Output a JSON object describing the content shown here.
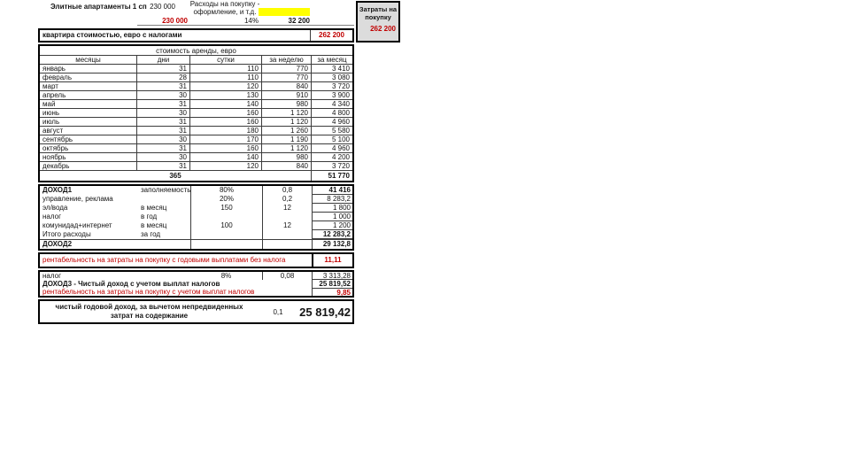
{
  "header": {
    "title": "Элитные апартаменты 1 сп",
    "price": "230 000",
    "expenses_label": "Расходы на покупку - оформление, и т.д.",
    "price_red": "230 000",
    "fees_percent": "14%",
    "fees_amount": "32 200"
  },
  "costs_box": {
    "label": "Затраты на покупку",
    "value": "262 200"
  },
  "apartment_row": {
    "label": "квартира стоимостью, евро с налогами",
    "value": "262 200"
  },
  "rent_table": {
    "title": "стоимость аренды, евро",
    "columns": [
      "месяцы",
      "дни",
      "сутки",
      "за неделю",
      "за месяц"
    ],
    "rows": [
      [
        "январь",
        "31",
        "110",
        "770",
        "3 410"
      ],
      [
        "февраль",
        "28",
        "110",
        "770",
        "3 080"
      ],
      [
        "март",
        "31",
        "120",
        "840",
        "3 720"
      ],
      [
        "апрель",
        "30",
        "130",
        "910",
        "3 900"
      ],
      [
        "май",
        "31",
        "140",
        "980",
        "4 340"
      ],
      [
        "июнь",
        "30",
        "160",
        "1 120",
        "4 800"
      ],
      [
        "июль",
        "31",
        "160",
        "1 120",
        "4 960"
      ],
      [
        "август",
        "31",
        "180",
        "1 260",
        "5 580"
      ],
      [
        "сентябрь",
        "30",
        "170",
        "1 190",
        "5 100"
      ],
      [
        "октябрь",
        "31",
        "160",
        "1 120",
        "4 960"
      ],
      [
        "ноябрь",
        "30",
        "140",
        "980",
        "4 200"
      ],
      [
        "декабрь",
        "31",
        "120",
        "840",
        "3 720"
      ]
    ],
    "total_days": "365",
    "total_year": "51 770"
  },
  "income": {
    "rows": [
      {
        "label": "ДОХОД1",
        "sub": "заполняемость",
        "v1": "80%",
        "v2": "0,8",
        "value": "41 416"
      },
      {
        "label": "управление, реклама",
        "sub": "",
        "v1": "20%",
        "v2": "0,2",
        "value": "8 283,2"
      },
      {
        "label": "эл/вода",
        "sub": "в месяц",
        "v1": "150",
        "v2": "12",
        "value": "1 800"
      },
      {
        "label": "налог",
        "sub": "в год",
        "v1": "",
        "v2": "",
        "value": "1 000"
      },
      {
        "label": "комунидад+интернет",
        "sub": "в месяц",
        "v1": "100",
        "v2": "12",
        "value": "1 200"
      },
      {
        "label": "Итого расходы",
        "sub": "за год",
        "v1": "",
        "v2": "",
        "value": "12 283,2"
      },
      {
        "label": "ДОХОД2",
        "sub": "",
        "v1": "",
        "v2": "",
        "value": "29 132,8"
      }
    ]
  },
  "profitability1": {
    "label": "рентабельность на затраты на покупку с годовыми выплатами без налога",
    "value": "11,11"
  },
  "tax": {
    "rows": [
      {
        "label": "налог",
        "v1": "8%",
        "v2": "0,08",
        "value": "3 313,28"
      },
      {
        "label": "ДОХОД3 - Чистый доход с учетом выплат налогов",
        "value": "25 819,52"
      },
      {
        "label": "рентабельность на затраты на покупку с учетом выплат налогов",
        "value": "9,85"
      }
    ]
  },
  "net": {
    "label": "чистый годовой доход, за вычетом непредвиденных затрат на содержание",
    "coef": "0,1",
    "value": "25 819,42"
  },
  "colors": {
    "accent_red": "#C00000",
    "highlight_yellow": "#FFFF00",
    "box_gray": "#DCDCDC"
  }
}
